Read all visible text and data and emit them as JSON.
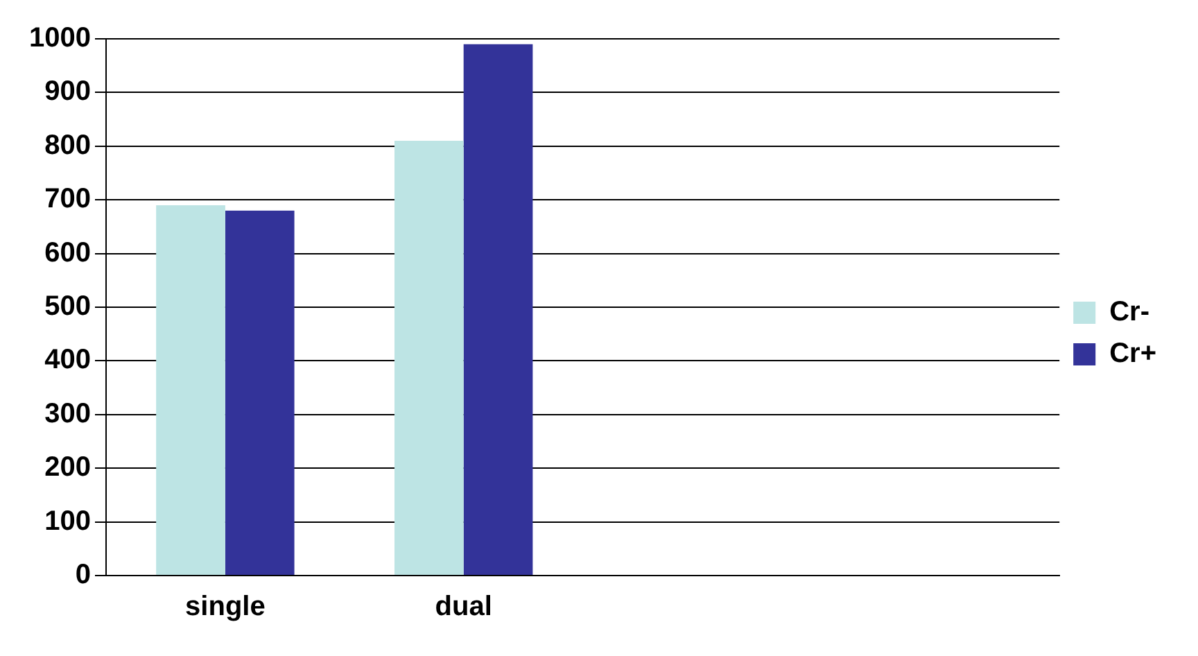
{
  "chart_data": {
    "type": "bar",
    "categories": [
      "single",
      "dual",
      null,
      null
    ],
    "series": [
      {
        "name": "Cr-",
        "color": "#bde4e4",
        "values": [
          690,
          810,
          null,
          null
        ]
      },
      {
        "name": "Cr+",
        "color": "#333399",
        "values": [
          680,
          990,
          null,
          null
        ]
      }
    ],
    "ylim": [
      0,
      1000
    ],
    "yticks": [
      0,
      100,
      200,
      300,
      400,
      500,
      600,
      700,
      800,
      900,
      1000
    ],
    "grid": "y",
    "legend": "right"
  }
}
